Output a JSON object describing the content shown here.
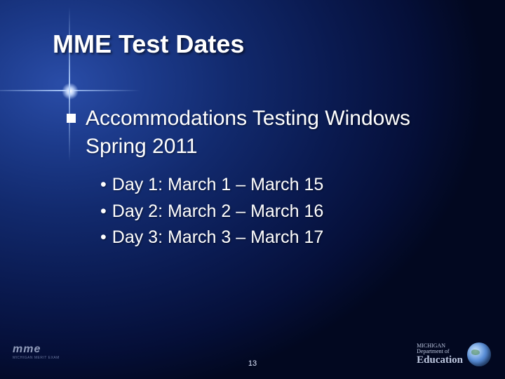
{
  "title": "MME Test Dates",
  "heading": {
    "line1": "Accommodations Testing Windows",
    "line2": "Spring 2011"
  },
  "items": [
    {
      "label": "Day 1:  March  1 – March 15"
    },
    {
      "label": "Day 2:  March  2 – March 16"
    },
    {
      "label": "Day 3:  March  3 – March 17"
    }
  ],
  "slide_number": "13",
  "logo_left": {
    "text": "mme",
    "sub": "MICHIGAN MERIT EXAM"
  },
  "logo_right": {
    "state": "MICHIGAN",
    "dept_prefix": "Department of",
    "dept": "Education"
  },
  "style": {
    "title_fontsize": 36,
    "body_fontsize": 30,
    "sub_fontsize": 25,
    "text_color": "#ffffff",
    "bg_gradient_inner": "#2a4da8",
    "bg_gradient_outer": "#020820",
    "bullet_level1": "square",
    "bullet_level2": "disc"
  }
}
